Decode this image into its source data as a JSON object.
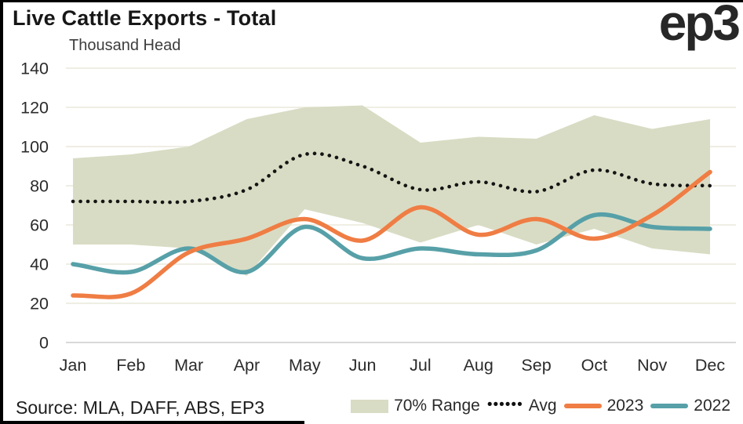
{
  "header": {
    "title": "Live Cattle Exports - Total",
    "unit_label": "Thousand Head",
    "logo": "ep3"
  },
  "source": {
    "text": "Source: MLA, DAFF, ABS, EP3"
  },
  "legend": {
    "range_label": "70% Range",
    "dots_glyph": "••••••",
    "avg_label": "Avg",
    "y2023_label": "2023",
    "y2022_label": "2022"
  },
  "colors": {
    "band": "#d9dcc4",
    "avg": "#141414",
    "y2023": "#ef7d44",
    "y2022": "#57a0a8",
    "gridline": "#efeee4",
    "axis_line": "#d9d9d9",
    "tick_text": "#2b2b2b"
  },
  "chart_data": {
    "type": "line",
    "title": "Live Cattle Exports - Total",
    "ylabel": "Thousand Head",
    "categories": [
      "Jan",
      "Feb",
      "Mar",
      "Apr",
      "May",
      "Jun",
      "Jul",
      "Aug",
      "Sep",
      "Oct",
      "Nov",
      "Dec"
    ],
    "ylim": [
      0,
      140
    ],
    "yticks": [
      0,
      20,
      40,
      60,
      80,
      100,
      120,
      140
    ],
    "grid": true,
    "legend_position": "bottom",
    "band": {
      "name": "70% Range",
      "top": [
        94,
        96,
        100,
        114,
        120,
        121,
        102,
        105,
        104,
        116,
        109,
        114
      ],
      "bottom": [
        50,
        50,
        48,
        34,
        68,
        61,
        51,
        60,
        50,
        58,
        48,
        45
      ]
    },
    "series": [
      {
        "name": "Avg",
        "style": "dotted",
        "values": [
          72,
          72,
          72,
          78,
          96,
          90,
          78,
          82,
          77,
          88,
          81,
          80
        ]
      },
      {
        "name": "2022",
        "style": "solid",
        "values": [
          40,
          36,
          48,
          36,
          59,
          43,
          48,
          45,
          47,
          65,
          59,
          58
        ]
      },
      {
        "name": "2023",
        "style": "solid",
        "values": [
          24,
          25,
          46,
          53,
          63,
          52,
          69,
          55,
          63,
          53,
          65,
          87
        ]
      }
    ],
    "source": "Source: MLA, DAFF, ABS, EP3"
  }
}
